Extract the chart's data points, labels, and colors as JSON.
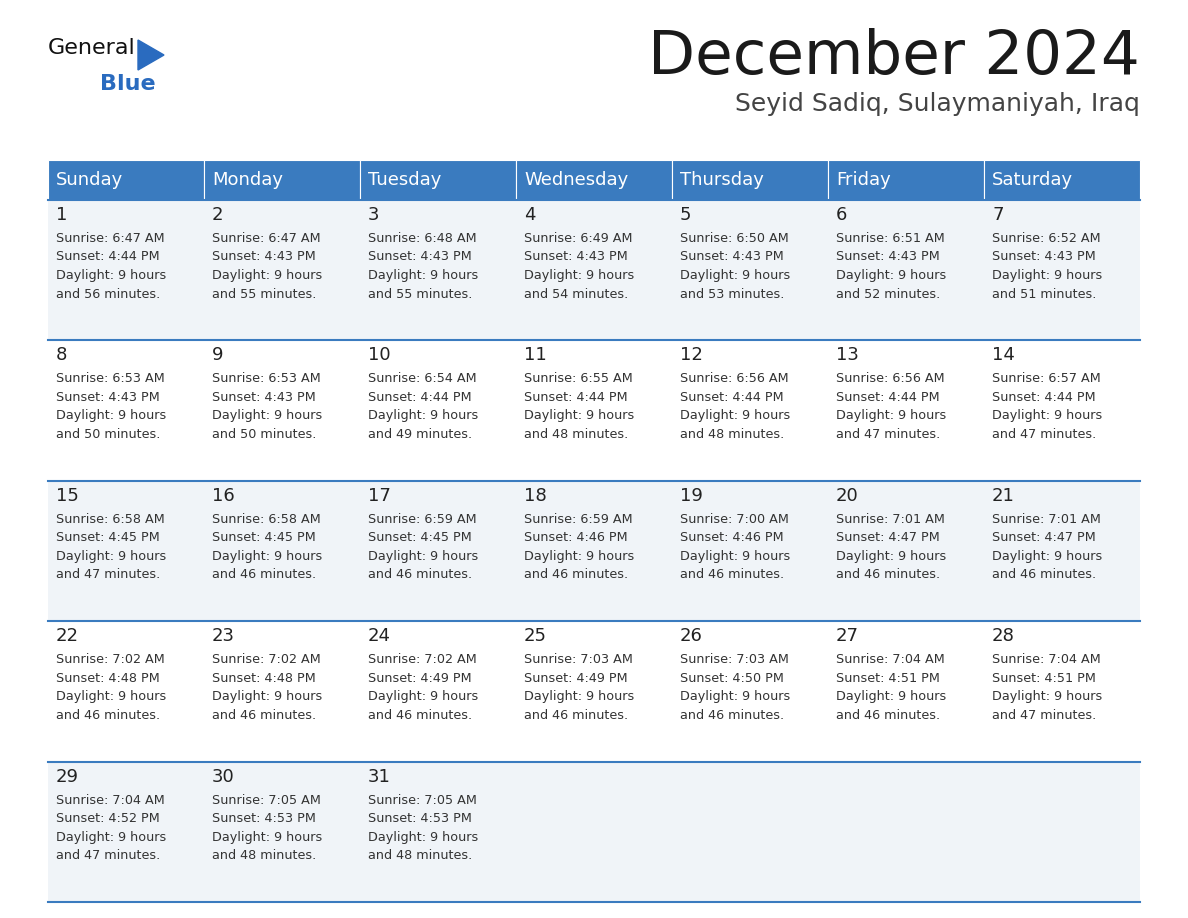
{
  "title": "December 2024",
  "subtitle": "Seyid Sadiq, Sulaymaniyah, Iraq",
  "days_of_week": [
    "Sunday",
    "Monday",
    "Tuesday",
    "Wednesday",
    "Thursday",
    "Friday",
    "Saturday"
  ],
  "header_bg": "#3a7bbf",
  "header_text": "#ffffff",
  "row_bg_odd": "#f0f4f8",
  "row_bg_even": "#ffffff",
  "border_color": "#3a7bbf",
  "day_num_color": "#222222",
  "cell_text_color": "#333333",
  "title_color": "#1a1a1a",
  "subtitle_color": "#444444",
  "logo_text_color": "#111111",
  "logo_blue_color": "#2a6bbf",
  "calendar": [
    [
      {
        "day": 1,
        "sunrise": "6:47 AM",
        "sunset": "4:44 PM",
        "daylight": "9 hours and 56 minutes"
      },
      {
        "day": 2,
        "sunrise": "6:47 AM",
        "sunset": "4:43 PM",
        "daylight": "9 hours and 55 minutes"
      },
      {
        "day": 3,
        "sunrise": "6:48 AM",
        "sunset": "4:43 PM",
        "daylight": "9 hours and 55 minutes"
      },
      {
        "day": 4,
        "sunrise": "6:49 AM",
        "sunset": "4:43 PM",
        "daylight": "9 hours and 54 minutes"
      },
      {
        "day": 5,
        "sunrise": "6:50 AM",
        "sunset": "4:43 PM",
        "daylight": "9 hours and 53 minutes"
      },
      {
        "day": 6,
        "sunrise": "6:51 AM",
        "sunset": "4:43 PM",
        "daylight": "9 hours and 52 minutes"
      },
      {
        "day": 7,
        "sunrise": "6:52 AM",
        "sunset": "4:43 PM",
        "daylight": "9 hours and 51 minutes"
      }
    ],
    [
      {
        "day": 8,
        "sunrise": "6:53 AM",
        "sunset": "4:43 PM",
        "daylight": "9 hours and 50 minutes"
      },
      {
        "day": 9,
        "sunrise": "6:53 AM",
        "sunset": "4:43 PM",
        "daylight": "9 hours and 50 minutes"
      },
      {
        "day": 10,
        "sunrise": "6:54 AM",
        "sunset": "4:44 PM",
        "daylight": "9 hours and 49 minutes"
      },
      {
        "day": 11,
        "sunrise": "6:55 AM",
        "sunset": "4:44 PM",
        "daylight": "9 hours and 48 minutes"
      },
      {
        "day": 12,
        "sunrise": "6:56 AM",
        "sunset": "4:44 PM",
        "daylight": "9 hours and 48 minutes"
      },
      {
        "day": 13,
        "sunrise": "6:56 AM",
        "sunset": "4:44 PM",
        "daylight": "9 hours and 47 minutes"
      },
      {
        "day": 14,
        "sunrise": "6:57 AM",
        "sunset": "4:44 PM",
        "daylight": "9 hours and 47 minutes"
      }
    ],
    [
      {
        "day": 15,
        "sunrise": "6:58 AM",
        "sunset": "4:45 PM",
        "daylight": "9 hours and 47 minutes"
      },
      {
        "day": 16,
        "sunrise": "6:58 AM",
        "sunset": "4:45 PM",
        "daylight": "9 hours and 46 minutes"
      },
      {
        "day": 17,
        "sunrise": "6:59 AM",
        "sunset": "4:45 PM",
        "daylight": "9 hours and 46 minutes"
      },
      {
        "day": 18,
        "sunrise": "6:59 AM",
        "sunset": "4:46 PM",
        "daylight": "9 hours and 46 minutes"
      },
      {
        "day": 19,
        "sunrise": "7:00 AM",
        "sunset": "4:46 PM",
        "daylight": "9 hours and 46 minutes"
      },
      {
        "day": 20,
        "sunrise": "7:01 AM",
        "sunset": "4:47 PM",
        "daylight": "9 hours and 46 minutes"
      },
      {
        "day": 21,
        "sunrise": "7:01 AM",
        "sunset": "4:47 PM",
        "daylight": "9 hours and 46 minutes"
      }
    ],
    [
      {
        "day": 22,
        "sunrise": "7:02 AM",
        "sunset": "4:48 PM",
        "daylight": "9 hours and 46 minutes"
      },
      {
        "day": 23,
        "sunrise": "7:02 AM",
        "sunset": "4:48 PM",
        "daylight": "9 hours and 46 minutes"
      },
      {
        "day": 24,
        "sunrise": "7:02 AM",
        "sunset": "4:49 PM",
        "daylight": "9 hours and 46 minutes"
      },
      {
        "day": 25,
        "sunrise": "7:03 AM",
        "sunset": "4:49 PM",
        "daylight": "9 hours and 46 minutes"
      },
      {
        "day": 26,
        "sunrise": "7:03 AM",
        "sunset": "4:50 PM",
        "daylight": "9 hours and 46 minutes"
      },
      {
        "day": 27,
        "sunrise": "7:04 AM",
        "sunset": "4:51 PM",
        "daylight": "9 hours and 46 minutes"
      },
      {
        "day": 28,
        "sunrise": "7:04 AM",
        "sunset": "4:51 PM",
        "daylight": "9 hours and 47 minutes"
      }
    ],
    [
      {
        "day": 29,
        "sunrise": "7:04 AM",
        "sunset": "4:52 PM",
        "daylight": "9 hours and 47 minutes"
      },
      {
        "day": 30,
        "sunrise": "7:05 AM",
        "sunset": "4:53 PM",
        "daylight": "9 hours and 48 minutes"
      },
      {
        "day": 31,
        "sunrise": "7:05 AM",
        "sunset": "4:53 PM",
        "daylight": "9 hours and 48 minutes"
      },
      null,
      null,
      null,
      null
    ]
  ]
}
